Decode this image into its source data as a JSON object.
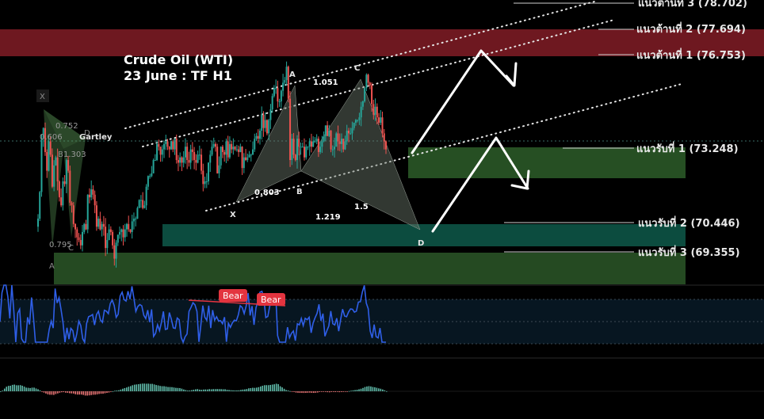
{
  "title": {
    "line1": "Crude Oil (WTI)",
    "line2": "23 June : TF H1"
  },
  "levels": [
    {
      "label": "แนวต้านที่ 3",
      "value": "(78.702)",
      "type": "resistance"
    },
    {
      "label": "แนวต้านที่ 2",
      "value": "(77.694)",
      "type": "resistance"
    },
    {
      "label": "แนวต้านที่ 1",
      "value": "(76.753)",
      "type": "resistance"
    },
    {
      "label": "แนวรับที่ 1",
      "value": "(73.248)",
      "type": "support"
    },
    {
      "label": "แนวรับที่ 2",
      "value": "(70.446)",
      "type": "support"
    },
    {
      "label": "แนวรับที่ 3",
      "value": "(69.355)",
      "type": "support"
    }
  ],
  "pattern_main": {
    "points": [
      "X",
      "A",
      "B",
      "C",
      "D"
    ],
    "ratios": [
      "1.051",
      "0.803",
      "1.5",
      "1.219"
    ]
  },
  "pattern_small": {
    "name": "Gartley",
    "points": [
      "X",
      "A",
      "B",
      "C",
      "D"
    ],
    "ratios": [
      "0.752",
      "0.606",
      "1.303",
      "0.795"
    ]
  },
  "rsi": {
    "divergence_labels": [
      "Bear",
      "Bear"
    ]
  },
  "colors": {
    "background": "#000000",
    "up_candle": "#26a69a",
    "down_candle": "#ef5350",
    "resistance_zone": "#7a1a22",
    "support_zone": "#2e5e2a",
    "support_zone_teal": "#0f5a4a",
    "rsi_line": "#2f5fe8",
    "bear_badge": "#e3343f",
    "arrow": "#ffffff"
  },
  "chart_data": {
    "type": "candlestick",
    "instrument": "Crude Oil (WTI)",
    "timeframe": "H1",
    "levels": [
      {
        "name": "แนวต้านที่ 3",
        "price": 78.702
      },
      {
        "name": "แนวต้านที่ 2",
        "price": 77.694
      },
      {
        "name": "แนวต้านที่ 1",
        "price": 76.753
      },
      {
        "name": "แนวรับที่ 1",
        "price": 73.248
      },
      {
        "name": "แนวรับที่ 2",
        "price": 70.446
      },
      {
        "name": "แนวรับที่ 3",
        "price": 69.355
      }
    ],
    "close_series": [
      70.6,
      71.6,
      73.6,
      74.0,
      73.1,
      72.4,
      73.5,
      73.0,
      71.8,
      72.6,
      72.9,
      72.0,
      71.4,
      71.1,
      72.0,
      71.9,
      72.8,
      72.4,
      71.2,
      71.1,
      70.4,
      70.2,
      69.9,
      69.8,
      69.6,
      70.1,
      70.4,
      70.2,
      71.5,
      71.4,
      71.7,
      71.5,
      71.1,
      70.3,
      70.6,
      70.2,
      70.4,
      70.3,
      69.5,
      69.8,
      70.2,
      70.1,
      69.6,
      69.1,
      69.7,
      70.0,
      70.1,
      70.2,
      69.9,
      70.2,
      70.4,
      70.2,
      70.1,
      70.5,
      70.6,
      70.6,
      71.0,
      71.3,
      71.3,
      71.0,
      71.1,
      71.8,
      72.2,
      72.2,
      72.3,
      72.8,
      72.8,
      73.4,
      73.3,
      73.0,
      73.2,
      73.4,
      73.5,
      73.3,
      73.2,
      73.5,
      73.2,
      73.6,
      72.8,
      72.7,
      72.9,
      72.7,
      72.9,
      73.3,
      72.8,
      72.7,
      73.2,
      73.1,
      72.8,
      72.7,
      73.0,
      73.0,
      72.4,
      71.9,
      72.0,
      72.0,
      72.7,
      73.0,
      73.3,
      73.4,
      73.3,
      72.3,
      72.6,
      73.3,
      73.1,
      73.0,
      73.5,
      72.9,
      73.4,
      73.2,
      73.3,
      73.2,
      73.2,
      73.1,
      73.3,
      72.5,
      72.9,
      72.8,
      72.9,
      73.0,
      73.0,
      73.2,
      73.6,
      73.7,
      73.6,
      73.9,
      74.5,
      74.0,
      74.3,
      73.8,
      74.3,
      74.7,
      75.2,
      75.5,
      75.5,
      75.0,
      75.0,
      75.4,
      75.7,
      75.8,
      76.3,
      75.1,
      72.8,
      73.6,
      73.0,
      72.8,
      73.6,
      73.3,
      73.3,
      73.3,
      72.9,
      73.3,
      73.3,
      73.5,
      73.3,
      73.5,
      73.5,
      73.6,
      73.1,
      73.3,
      73.5,
      73.7,
      74.1,
      73.7,
      73.9,
      73.2,
      73.2,
      73.3,
      73.8,
      73.5,
      73.4,
      73.6,
      73.2,
      73.5,
      73.9,
      73.8,
      73.8,
      74.0,
      74.2,
      74.3,
      74.3,
      74.4,
      74.8,
      75.0,
      75.5,
      76.0,
      75.7,
      75.6,
      74.9,
      74.5,
      74.8,
      74.4,
      74.2,
      74.4,
      73.8,
      73.5,
      73.2
    ]
  }
}
